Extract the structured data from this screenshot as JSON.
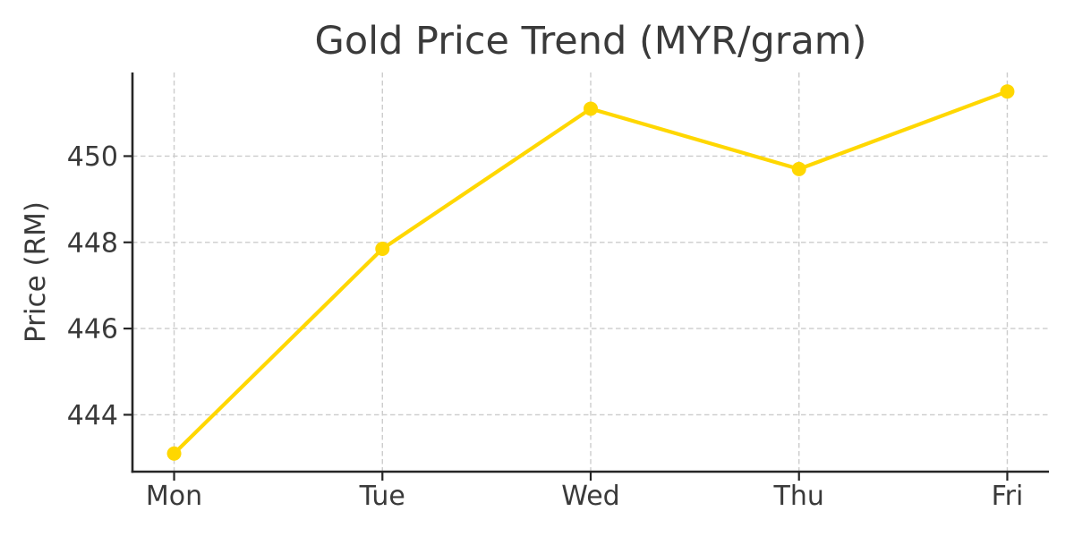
{
  "chart_data": {
    "type": "line",
    "title": "Gold Price Trend (MYR/gram)",
    "ylabel": "Price (RM)",
    "xlabel": "",
    "categories": [
      "Mon",
      "Tue",
      "Wed",
      "Thu",
      "Fri"
    ],
    "values": [
      443.1,
      447.85,
      451.1,
      449.7,
      451.5
    ],
    "yticks": [
      444,
      446,
      448,
      450
    ],
    "ylim": [
      442.68,
      451.94
    ],
    "xlim": [
      -0.2,
      4.2
    ],
    "grid": {
      "show": true,
      "style": "dashed"
    },
    "legend": "none",
    "marker": "circle",
    "colors": {
      "line": "#FFD700",
      "marker": "#FFD700",
      "text": "#3a3a3a",
      "spine": "#262626",
      "grid": "#cccccc",
      "background": "#ffffff"
    }
  }
}
